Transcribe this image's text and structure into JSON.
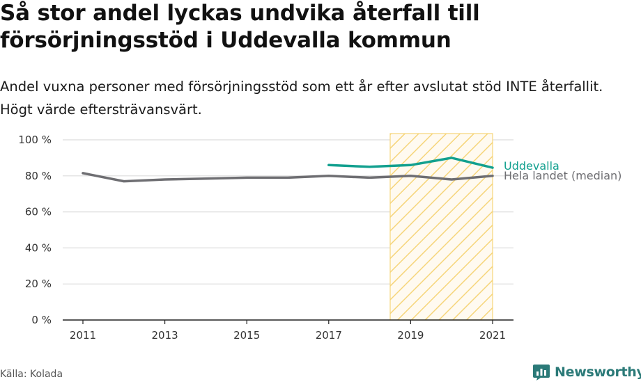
{
  "header": {
    "title": "Så stor andel lyckas undvika återfall till försörjningsstöd i Uddevalla kommun",
    "subtitle": "Andel vuxna personer med försörjningsstöd som ett år efter avslutat stöd INTE återfallit. Högt värde eftersträvansvärt."
  },
  "footer": {
    "source": "Källa: Kolada",
    "brand": "Newsworthy"
  },
  "chart_data": {
    "type": "line",
    "x": [
      2011,
      2012,
      2013,
      2014,
      2015,
      2016,
      2017,
      2018,
      2019,
      2020,
      2021
    ],
    "xticks": [
      "2011",
      "2013",
      "2015",
      "2017",
      "2019",
      "2021"
    ],
    "yticks": [
      "0 %",
      "20 %",
      "40 %",
      "60 %",
      "80 %",
      "100 %"
    ],
    "ylim": [
      0,
      100
    ],
    "grid": true,
    "highlight_range": [
      2018.5,
      2021
    ],
    "series": [
      {
        "name": "Hela landet (median)",
        "color": "#6e6e72",
        "values": [
          81.5,
          77,
          78,
          78.5,
          79,
          79,
          80,
          79,
          80,
          78,
          80
        ]
      },
      {
        "name": "Uddevalla",
        "color": "#12a08f",
        "values": [
          null,
          null,
          null,
          null,
          null,
          null,
          86,
          85,
          86,
          90,
          84.5
        ]
      }
    ]
  }
}
